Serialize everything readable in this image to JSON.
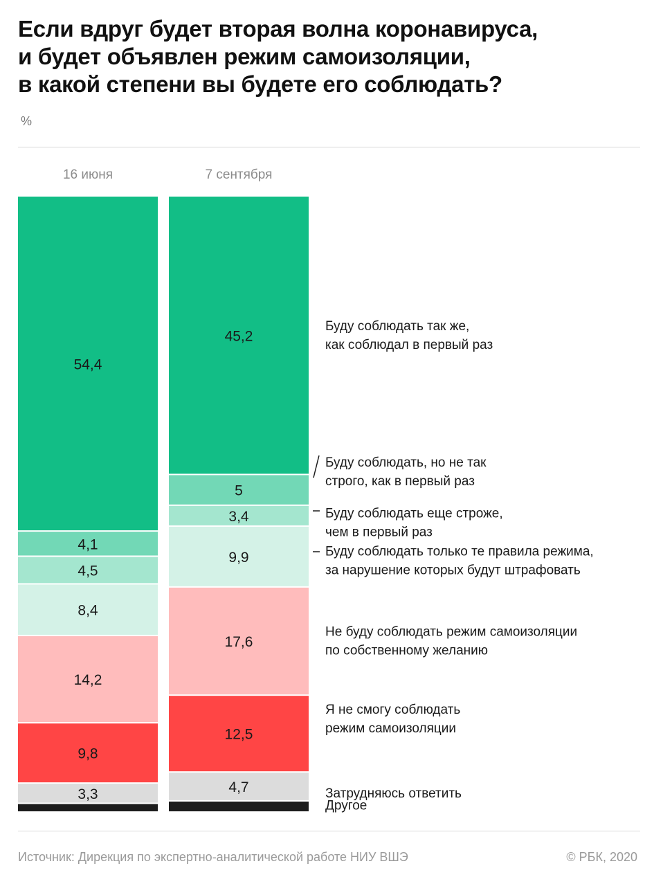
{
  "title": "Если вдруг будет вторая волна коронавируса,\nи будет объявлен режим самоизоляции,\nв какой степени вы будете его соблюдать?",
  "unit": "%",
  "source": "Источник: Дирекция по экспертно-аналитической работе НИУ ВШЭ",
  "copyright": "© РБК, 2020",
  "chart_data": {
    "type": "bar",
    "stacked": true,
    "orientation": "vertical",
    "categories": [
      "16 июня",
      "7 сентября"
    ],
    "series": [
      {
        "name": "Буду соблюдать так же,\nкак соблюдал в первый раз",
        "values": [
          54.4,
          45.2
        ],
        "labels": [
          "54,4",
          "45,2"
        ],
        "color": "#12be86"
      },
      {
        "name": "Буду соблюдать, но не так\nстрого, как в первый раз",
        "values": [
          4.1,
          5
        ],
        "labels": [
          "4,1",
          "5"
        ],
        "color": "#72d8b6"
      },
      {
        "name": "Буду соблюдать еще строже,\nчем в первый раз",
        "values": [
          4.5,
          3.4
        ],
        "labels": [
          "4,5",
          "3,4"
        ],
        "color": "#a4e6cf"
      },
      {
        "name": "Буду соблюдать только те правила режима,\nза нарушение которых будут штрафовать",
        "values": [
          8.4,
          9.9
        ],
        "labels": [
          "8,4",
          "9,9"
        ],
        "color": "#d4f2e7"
      },
      {
        "name": "Не буду соблюдать режим самоизоляции\nпо собственному желанию",
        "values": [
          14.2,
          17.6
        ],
        "labels": [
          "14,2",
          "17,6"
        ],
        "color": "#ffbcbc"
      },
      {
        "name": "Я не смогу соблюдать\nрежим самоизоляции",
        "values": [
          9.8,
          12.5
        ],
        "labels": [
          "9,8",
          "12,5"
        ],
        "color": "#ff4545"
      },
      {
        "name": "Затрудняюсь ответить",
        "values": [
          3.3,
          4.7
        ],
        "labels": [
          "3,3",
          "4,7"
        ],
        "color": "#dcdcdc"
      },
      {
        "name": "Другое",
        "values": [
          1.3,
          1.7
        ],
        "labels": [
          "",
          ""
        ],
        "color": "#1c1c1c"
      }
    ],
    "legend_position": "right",
    "grid": false
  }
}
